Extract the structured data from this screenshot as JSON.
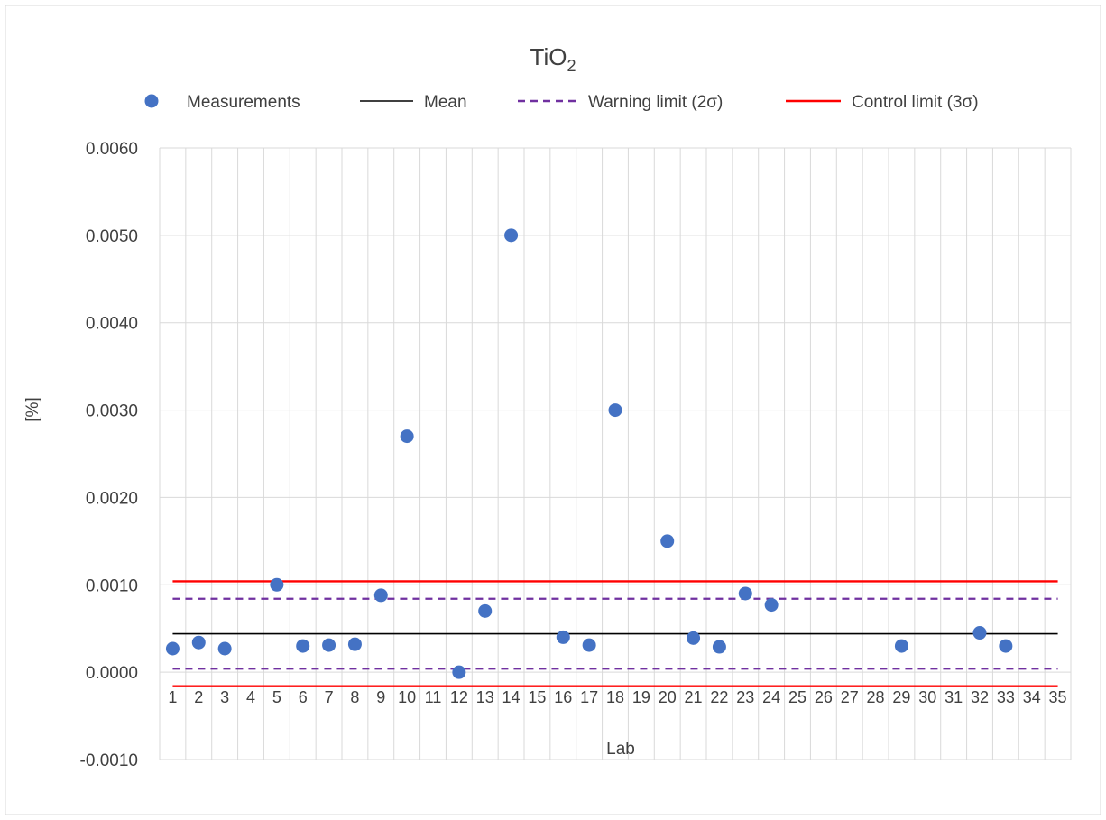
{
  "chart_data": {
    "type": "scatter",
    "title": "TiO",
    "title_subscript": "2",
    "xlabel": "Lab",
    "ylabel": "[%]",
    "ylim": [
      -0.001,
      0.006
    ],
    "yticks": [
      -0.001,
      0.0,
      0.001,
      0.002,
      0.003,
      0.004,
      0.005,
      0.006
    ],
    "ytick_labels": [
      "-0.0010",
      "0.0000",
      "0.0010",
      "0.0020",
      "0.0030",
      "0.0040",
      "0.0050",
      "0.0060"
    ],
    "categories": [
      "1",
      "2",
      "3",
      "4",
      "5",
      "6",
      "7",
      "8",
      "9",
      "10",
      "11",
      "12",
      "13",
      "14",
      "15",
      "16",
      "17",
      "18",
      "19",
      "20",
      "21",
      "22",
      "23",
      "24",
      "25",
      "26",
      "27",
      "28",
      "29",
      "30",
      "31",
      "32",
      "33",
      "34",
      "35"
    ],
    "grid": true,
    "legend_position": "top",
    "legend": [
      {
        "label": "Measurements",
        "kind": "marker",
        "color": "#4472C4"
      },
      {
        "label": "Mean",
        "kind": "line",
        "color": "#000000",
        "dash": "solid"
      },
      {
        "label": "Warning limit (2σ)",
        "kind": "line",
        "color": "#7030A0",
        "dash": "dashed"
      },
      {
        "label": "Control limit (3σ)",
        "kind": "line",
        "color": "#FF0000",
        "dash": "solid"
      }
    ],
    "measurements": [
      {
        "lab": 1,
        "value": 0.00027
      },
      {
        "lab": 2,
        "value": 0.00034
      },
      {
        "lab": 3,
        "value": 0.00027
      },
      {
        "lab": 5,
        "value": 0.001
      },
      {
        "lab": 6,
        "value": 0.0003
      },
      {
        "lab": 7,
        "value": 0.00031
      },
      {
        "lab": 8,
        "value": 0.00032
      },
      {
        "lab": 9,
        "value": 0.00088
      },
      {
        "lab": 10,
        "value": 0.0027
      },
      {
        "lab": 12,
        "value": 0.0
      },
      {
        "lab": 13,
        "value": 0.0007
      },
      {
        "lab": 14,
        "value": 0.005
      },
      {
        "lab": 16,
        "value": 0.0004
      },
      {
        "lab": 17,
        "value": 0.00031
      },
      {
        "lab": 18,
        "value": 0.003
      },
      {
        "lab": 20,
        "value": 0.0015
      },
      {
        "lab": 21,
        "value": 0.00039
      },
      {
        "lab": 22,
        "value": 0.00029
      },
      {
        "lab": 23,
        "value": 0.0009
      },
      {
        "lab": 24,
        "value": 0.00077
      },
      {
        "lab": 29,
        "value": 0.0003
      },
      {
        "lab": 32,
        "value": 0.00045
      },
      {
        "lab": 33,
        "value": 0.0003
      }
    ],
    "reference_lines": {
      "mean": 0.00044,
      "warning_upper": 0.00084,
      "warning_lower": 4e-05,
      "control_upper": 0.00104,
      "control_lower": -0.00016
    },
    "colors": {
      "marker": "#4472C4",
      "mean": "#000000",
      "warning": "#7030A0",
      "control": "#FF0000",
      "grid": "#D9D9D9",
      "text": "#404040"
    }
  }
}
